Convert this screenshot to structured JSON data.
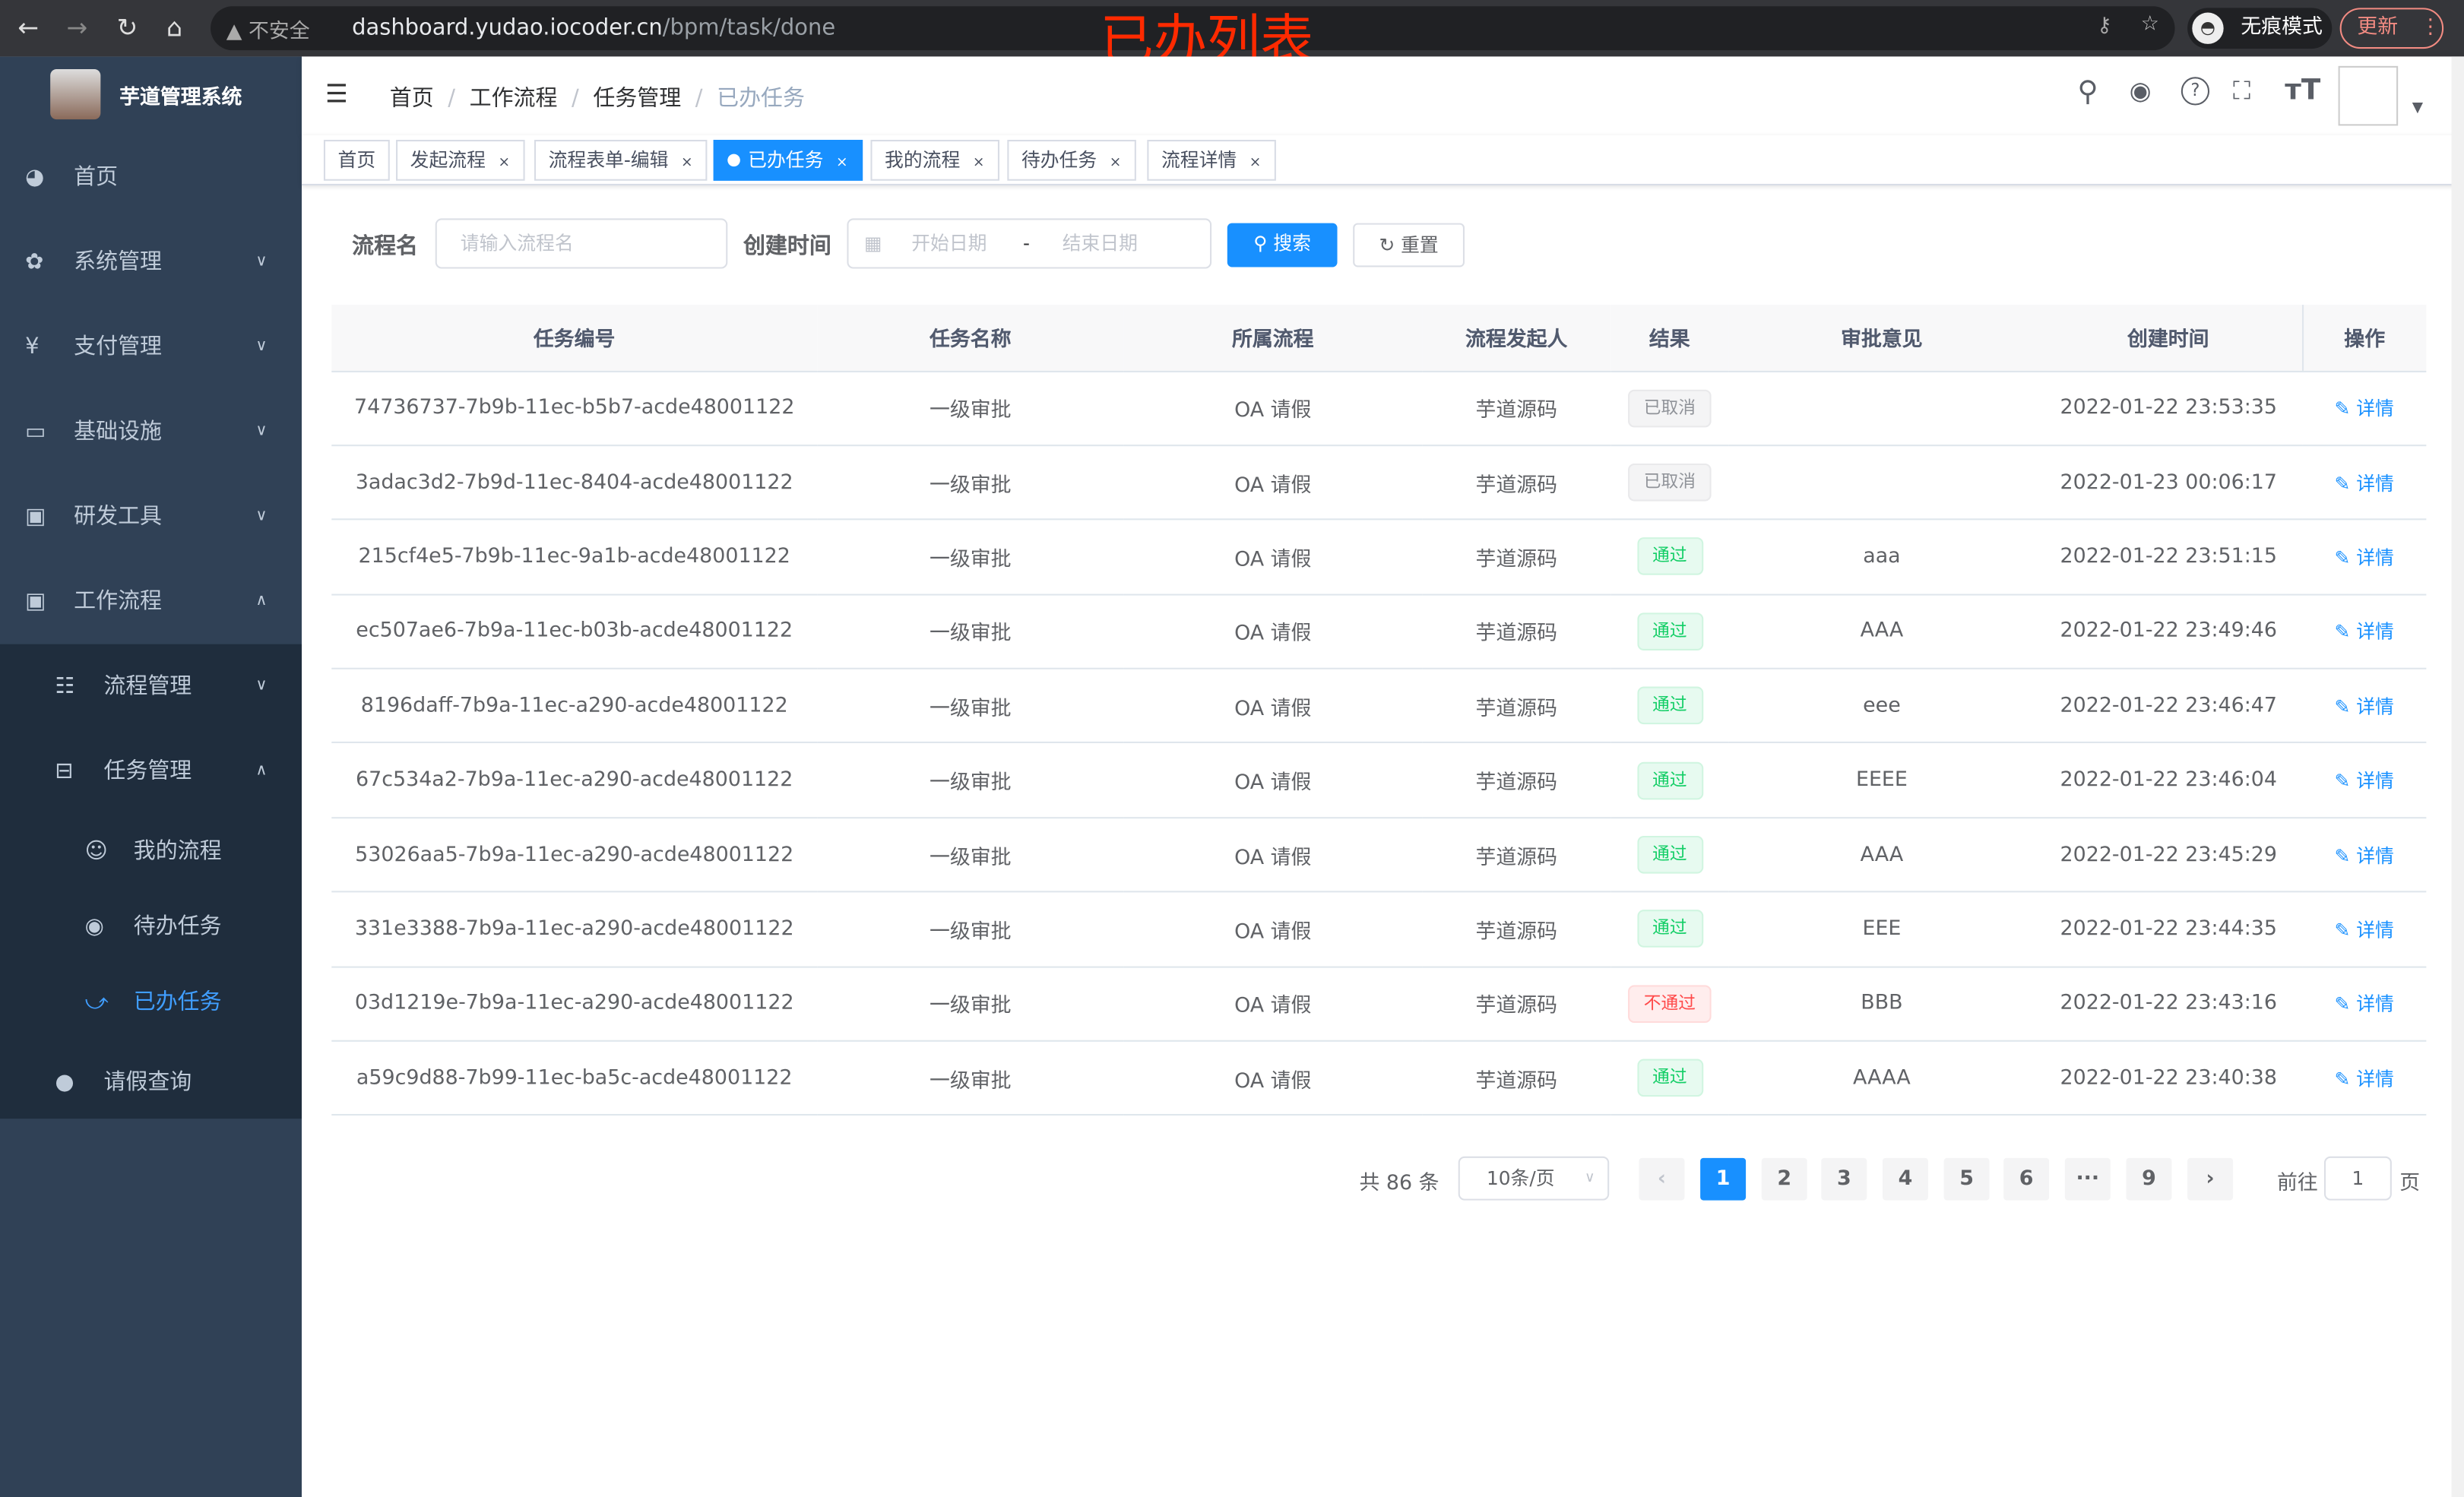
{
  "browser": {
    "insecure": "不安全",
    "url_host": "dashboard.yudao.iocoder.cn",
    "url_path": "/bpm/task/done",
    "incognito": "无痕模式",
    "update": "更新"
  },
  "overlay_title": "已办列表",
  "app": {
    "title": "芋道管理系统"
  },
  "sidebar": {
    "items": [
      {
        "label": "首页",
        "icon": "dashboard-icon"
      },
      {
        "label": "系统管理",
        "icon": "gear-icon"
      },
      {
        "label": "支付管理",
        "icon": "yen-icon"
      },
      {
        "label": "基础设施",
        "icon": "monitor-icon"
      },
      {
        "label": "研发工具",
        "icon": "toolbox-icon"
      },
      {
        "label": "工作流程",
        "icon": "toolbox-icon"
      },
      {
        "label": "流程管理",
        "icon": "list-icon"
      },
      {
        "label": "任务管理",
        "icon": "tree-icon"
      },
      {
        "label": "我的流程",
        "icon": "chat-icon"
      },
      {
        "label": "待办任务",
        "icon": "eye-icon"
      },
      {
        "label": "已办任务",
        "icon": "finish-icon"
      },
      {
        "label": "请假查询",
        "icon": "user-icon"
      }
    ],
    "active": "已办任务",
    "active_color": "#409eff"
  },
  "breadcrumb": [
    "首页",
    "工作流程",
    "任务管理",
    "已办任务"
  ],
  "tags": [
    {
      "label": "首页"
    },
    {
      "label": "发起流程"
    },
    {
      "label": "流程表单-编辑"
    },
    {
      "label": "已办任务",
      "active": true
    },
    {
      "label": "我的流程"
    },
    {
      "label": "待办任务"
    },
    {
      "label": "流程详情"
    }
  ],
  "filter": {
    "name_label": "流程名",
    "name_placeholder": "请输入流程名",
    "time_label": "创建时间",
    "start_placeholder": "开始日期",
    "separator": "-",
    "end_placeholder": "结束日期",
    "search": "搜索",
    "reset": "重置"
  },
  "table": {
    "columns": [
      "任务编号",
      "任务名称",
      "所属流程",
      "流程发起人",
      "结果",
      "审批意见",
      "创建时间",
      "操作"
    ],
    "rows": [
      [
        "74736737-7b9b-11ec-b5b7-acde48001122",
        "一级审批",
        "OA 请假",
        "芋道源码",
        "已取消",
        "",
        "2022-01-22 23:53:35"
      ],
      [
        "3adac3d2-7b9d-11ec-8404-acde48001122",
        "一级审批",
        "OA 请假",
        "芋道源码",
        "已取消",
        "",
        "2022-01-23 00:06:17"
      ],
      [
        "215cf4e5-7b9b-11ec-9a1b-acde48001122",
        "一级审批",
        "OA 请假",
        "芋道源码",
        "通过",
        "aaa",
        "2022-01-22 23:51:15"
      ],
      [
        "ec507ae6-7b9a-11ec-b03b-acde48001122",
        "一级审批",
        "OA 请假",
        "芋道源码",
        "通过",
        "AAA",
        "2022-01-22 23:49:46"
      ],
      [
        "8196daff-7b9a-11ec-a290-acde48001122",
        "一级审批",
        "OA 请假",
        "芋道源码",
        "通过",
        "eee",
        "2022-01-22 23:46:47"
      ],
      [
        "67c534a2-7b9a-11ec-a290-acde48001122",
        "一级审批",
        "OA 请假",
        "芋道源码",
        "通过",
        "EEEE",
        "2022-01-22 23:46:04"
      ],
      [
        "53026aa5-7b9a-11ec-a290-acde48001122",
        "一级审批",
        "OA 请假",
        "芋道源码",
        "通过",
        "AAA",
        "2022-01-22 23:45:29"
      ],
      [
        "331e3388-7b9a-11ec-a290-acde48001122",
        "一级审批",
        "OA 请假",
        "芋道源码",
        "通过",
        "EEE",
        "2022-01-22 23:44:35"
      ],
      [
        "03d1219e-7b9a-11ec-a290-acde48001122",
        "一级审批",
        "OA 请假",
        "芋道源码",
        "不通过",
        "BBB",
        "2022-01-22 23:43:16"
      ],
      [
        "a59c9d88-7b99-11ec-ba5c-acde48001122",
        "一级审批",
        "OA 请假",
        "芋道源码",
        "通过",
        "AAAA",
        "2022-01-22 23:40:38"
      ]
    ],
    "action": "详情",
    "result_colors": {
      "已取消": "#909399",
      "通过": "#13ce66",
      "不通过": "#ff4949"
    }
  },
  "pagination": {
    "total": "共 86 条",
    "page_size": "10条/页",
    "pages": [
      "1",
      "2",
      "3",
      "4",
      "5",
      "6",
      "···",
      "9"
    ],
    "current": "1",
    "goto_prefix": "前往",
    "goto_value": "1",
    "goto_suffix": "页"
  }
}
